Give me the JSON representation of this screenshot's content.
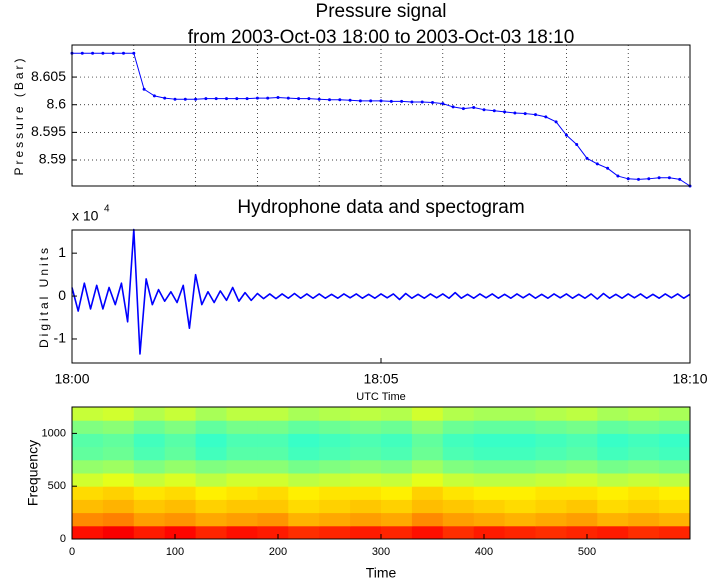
{
  "chart_data": [
    {
      "type": "line",
      "title": "Pressure signal",
      "subtitle": "from 2003-Oct-03 18:00 to 2003-Oct-03 18:10",
      "ylabel": "Pressure (Bar)",
      "color": "#0000ff",
      "markers": true,
      "grid": true,
      "ylim": [
        8.5853,
        8.6108
      ],
      "yticks": [
        8.59,
        8.595,
        8.6,
        8.605
      ],
      "values": [
        8.6093,
        8.6093,
        8.6093,
        8.6093,
        8.6093,
        8.6093,
        8.6093,
        8.6028,
        8.6016,
        8.6012,
        8.601,
        8.601,
        8.601,
        8.6011,
        8.6011,
        8.6011,
        8.6011,
        8.6011,
        8.6012,
        8.6012,
        8.6013,
        8.6012,
        8.6011,
        8.6011,
        8.601,
        8.6009,
        8.6009,
        8.6008,
        8.6007,
        8.6007,
        8.6007,
        8.6006,
        8.6006,
        8.6005,
        8.6005,
        8.6004,
        8.6002,
        8.5996,
        8.5993,
        8.5995,
        8.5991,
        8.5989,
        8.5987,
        8.5985,
        8.5984,
        8.5982,
        8.5978,
        8.5969,
        8.5945,
        8.5928,
        8.5903,
        8.5893,
        8.5885,
        8.5871,
        8.5866,
        8.5865,
        8.5866,
        8.5868,
        8.5868,
        8.5865,
        8.5853
      ]
    },
    {
      "type": "line",
      "title": "Hydrophone data and spectogram",
      "ylabel": "Digital Units",
      "ymultiplier": "x 10",
      "ymultiplier_exponent": "4",
      "xlabel": "UTC Time",
      "color": "#0000ff",
      "grid": false,
      "xlim": [
        0,
        10
      ],
      "xticks": [
        {
          "value": 0,
          "label": "18:00"
        },
        {
          "value": 5,
          "label": "18:05"
        },
        {
          "value": 10,
          "label": "18:10"
        }
      ],
      "ylim": [
        -1.56,
        1.54
      ],
      "yticks": [
        -1,
        0,
        1
      ],
      "x": [
        0,
        0.1,
        0.2,
        0.3,
        0.4,
        0.5,
        0.6,
        0.7,
        0.8,
        0.9,
        1,
        1.1,
        1.2,
        1.3,
        1.4,
        1.5,
        1.6,
        1.7,
        1.8,
        1.9,
        2,
        2.1,
        2.2,
        2.3,
        2.4,
        2.5,
        2.6,
        2.7,
        2.8,
        2.9,
        3,
        3.1,
        3.2,
        3.3,
        3.4,
        3.5,
        3.6,
        3.7,
        3.8,
        3.9,
        4,
        4.1,
        4.2,
        4.3,
        4.4,
        4.5,
        4.6,
        4.7,
        4.8,
        4.9,
        5,
        5.1,
        5.2,
        5.3,
        5.4,
        5.5,
        5.6,
        5.7,
        5.8,
        5.9,
        6,
        6.1,
        6.2,
        6.3,
        6.4,
        6.5,
        6.6,
        6.7,
        6.8,
        6.9,
        7,
        7.1,
        7.2,
        7.3,
        7.4,
        7.5,
        7.6,
        7.7,
        7.8,
        7.9,
        8,
        8.1,
        8.2,
        8.3,
        8.4,
        8.5,
        8.6,
        8.7,
        8.8,
        8.9,
        9,
        9.1,
        9.2,
        9.3,
        9.4,
        9.5,
        9.6,
        9.7,
        9.8,
        9.9,
        10
      ],
      "values": [
        0.2,
        -0.35,
        0.3,
        -0.3,
        0.25,
        -0.3,
        0.2,
        -0.2,
        0.3,
        -0.6,
        1.55,
        -1.35,
        0.4,
        -0.2,
        0.15,
        -0.12,
        0.1,
        -0.15,
        0.25,
        -0.75,
        0.5,
        -0.2,
        0.1,
        -0.15,
        0.12,
        -0.1,
        0.2,
        -0.12,
        0.08,
        -0.1,
        0.06,
        -0.06,
        0.05,
        -0.06,
        0.05,
        -0.05,
        0.06,
        -0.05,
        0.05,
        -0.05,
        0.05,
        -0.05,
        0.04,
        -0.05,
        0.05,
        -0.04,
        0.05,
        -0.05,
        0.04,
        -0.05,
        0.05,
        -0.04,
        0.05,
        -0.08,
        0.06,
        -0.05,
        0.04,
        -0.05,
        0.05,
        -0.04,
        0.05,
        -0.05,
        0.08,
        -0.05,
        0.04,
        -0.05,
        0.05,
        -0.04,
        0.05,
        -0.05,
        0.04,
        -0.05,
        0.05,
        -0.04,
        0.05,
        -0.05,
        0.04,
        -0.05,
        0.05,
        -0.04,
        0.05,
        -0.05,
        0.04,
        -0.05,
        0.05,
        -0.07,
        0.06,
        -0.05,
        0.04,
        -0.05,
        0.05,
        -0.04,
        0.05,
        -0.05,
        0.04,
        -0.05,
        0.05,
        -0.04,
        0.05,
        -0.05,
        0.04
      ]
    },
    {
      "type": "heatmap",
      "xlabel": "Time",
      "ylabel": "Frequency",
      "colormap": "jet",
      "xlim": [
        0,
        600
      ],
      "xticks": [
        0,
        100,
        200,
        300,
        400,
        500
      ],
      "ylim": [
        0,
        1250
      ],
      "yticks": [
        0,
        500,
        1000
      ],
      "xbins": [
        0,
        30,
        60,
        90,
        120,
        150,
        180,
        210,
        240,
        270,
        300,
        330,
        360,
        390,
        420,
        450,
        480,
        510,
        540,
        570,
        600
      ],
      "ybins": [
        0,
        125,
        250,
        375,
        500,
        625,
        750,
        875,
        1000,
        1125,
        1250
      ],
      "z": [
        [
          0.86,
          0.88,
          0.85,
          0.87,
          0.84,
          0.86,
          0.85,
          0.83,
          0.84,
          0.85,
          0.84,
          0.86,
          0.83,
          0.85,
          0.84,
          0.83,
          0.84,
          0.85,
          0.83,
          0.84
        ],
        [
          0.74,
          0.75,
          0.72,
          0.73,
          0.71,
          0.72,
          0.73,
          0.7,
          0.71,
          0.72,
          0.71,
          0.74,
          0.72,
          0.71,
          0.7,
          0.71,
          0.72,
          0.7,
          0.71,
          0.7
        ],
        [
          0.69,
          0.7,
          0.68,
          0.69,
          0.67,
          0.68,
          0.68,
          0.66,
          0.67,
          0.68,
          0.67,
          0.69,
          0.68,
          0.67,
          0.66,
          0.67,
          0.68,
          0.66,
          0.67,
          0.66
        ],
        [
          0.66,
          0.67,
          0.65,
          0.66,
          0.64,
          0.65,
          0.66,
          0.64,
          0.65,
          0.65,
          0.64,
          0.67,
          0.65,
          0.64,
          0.64,
          0.65,
          0.65,
          0.64,
          0.65,
          0.64
        ],
        [
          0.58,
          0.6,
          0.57,
          0.59,
          0.56,
          0.58,
          0.58,
          0.56,
          0.57,
          0.58,
          0.57,
          0.6,
          0.57,
          0.56,
          0.56,
          0.57,
          0.58,
          0.56,
          0.57,
          0.56
        ],
        [
          0.52,
          0.53,
          0.5,
          0.52,
          0.5,
          0.51,
          0.51,
          0.49,
          0.5,
          0.51,
          0.5,
          0.53,
          0.5,
          0.49,
          0.49,
          0.5,
          0.51,
          0.49,
          0.5,
          0.49
        ],
        [
          0.47,
          0.48,
          0.45,
          0.47,
          0.44,
          0.46,
          0.46,
          0.44,
          0.45,
          0.46,
          0.45,
          0.48,
          0.45,
          0.44,
          0.44,
          0.45,
          0.46,
          0.44,
          0.45,
          0.44
        ],
        [
          0.46,
          0.47,
          0.44,
          0.46,
          0.43,
          0.45,
          0.45,
          0.43,
          0.44,
          0.45,
          0.44,
          0.47,
          0.44,
          0.43,
          0.43,
          0.44,
          0.45,
          0.43,
          0.44,
          0.43
        ],
        [
          0.5,
          0.51,
          0.48,
          0.5,
          0.47,
          0.49,
          0.49,
          0.47,
          0.48,
          0.49,
          0.48,
          0.51,
          0.48,
          0.47,
          0.47,
          0.48,
          0.49,
          0.47,
          0.48,
          0.47
        ],
        [
          0.57,
          0.58,
          0.55,
          0.57,
          0.54,
          0.56,
          0.56,
          0.54,
          0.55,
          0.56,
          0.55,
          0.58,
          0.55,
          0.54,
          0.54,
          0.55,
          0.56,
          0.54,
          0.55,
          0.54
        ]
      ]
    }
  ]
}
